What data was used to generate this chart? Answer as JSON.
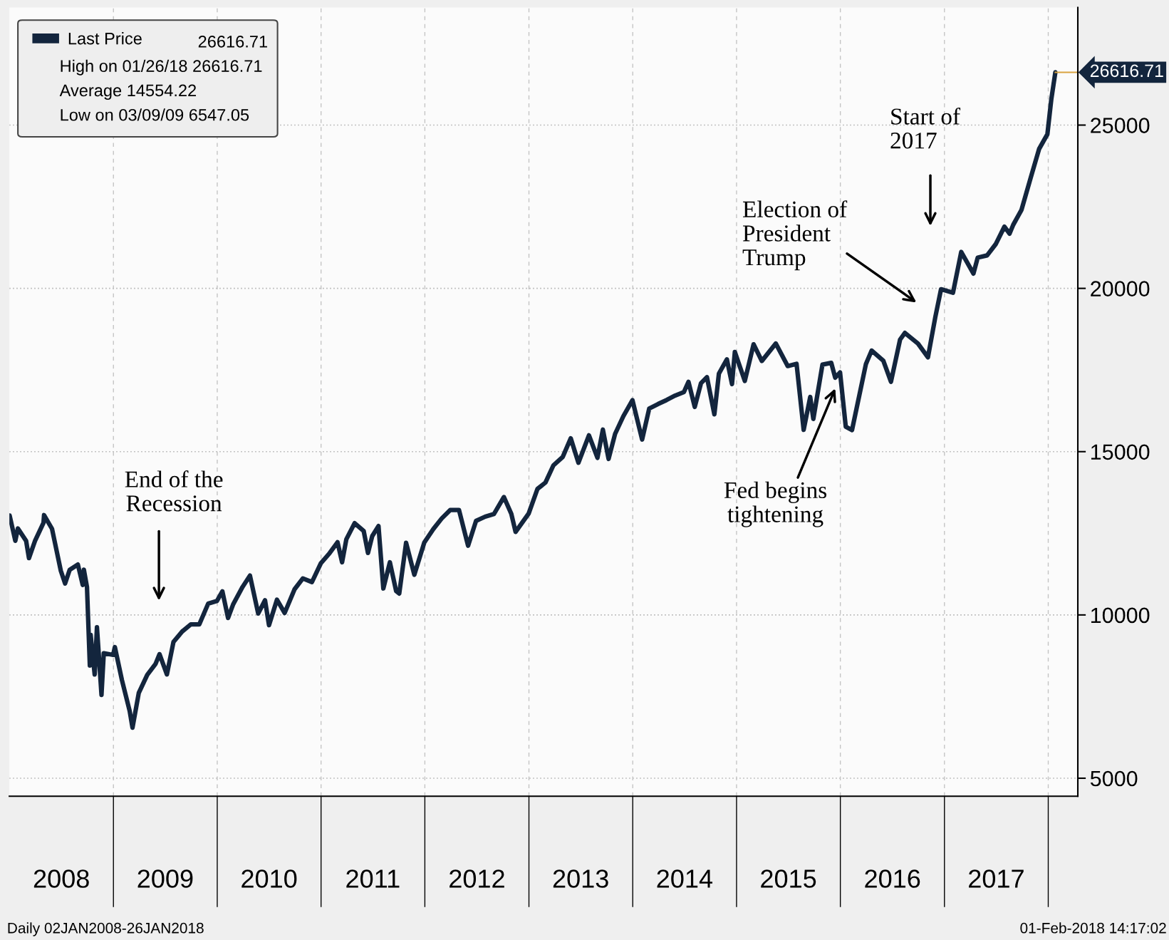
{
  "chart_data": {
    "type": "line",
    "series": [
      {
        "name": "Last Price",
        "color": "#13253d",
        "x": [
          "2008-01-02",
          "2008-01-22",
          "2008-01-31",
          "2008-02-29",
          "2008-03-10",
          "2008-03-31",
          "2008-04-30",
          "2008-05-02",
          "2008-05-30",
          "2008-06-30",
          "2008-07-15",
          "2008-07-31",
          "2008-08-29",
          "2008-09-15",
          "2008-09-19",
          "2008-09-30",
          "2008-10-10",
          "2008-10-13",
          "2008-10-27",
          "2008-11-04",
          "2008-11-20",
          "2008-11-28",
          "2008-12-31",
          "2009-01-06",
          "2009-01-31",
          "2009-02-27",
          "2009-03-09",
          "2009-03-31",
          "2009-04-30",
          "2009-05-29",
          "2009-06-12",
          "2009-07-08",
          "2009-07-31",
          "2009-08-31",
          "2009-09-30",
          "2009-10-30",
          "2009-11-30",
          "2009-12-31",
          "2010-01-19",
          "2010-02-08",
          "2010-02-26",
          "2010-03-31",
          "2010-04-26",
          "2010-05-25",
          "2010-06-18",
          "2010-07-02",
          "2010-07-30",
          "2010-08-26",
          "2010-09-30",
          "2010-10-29",
          "2010-11-30",
          "2010-12-31",
          "2011-01-31",
          "2011-02-28",
          "2011-03-16",
          "2011-03-31",
          "2011-04-29",
          "2011-05-31",
          "2011-06-15",
          "2011-06-30",
          "2011-07-22",
          "2011-08-08",
          "2011-08-31",
          "2011-09-22",
          "2011-10-03",
          "2011-10-27",
          "2011-11-25",
          "2011-12-30",
          "2012-01-31",
          "2012-02-29",
          "2012-03-30",
          "2012-04-30",
          "2012-06-01",
          "2012-06-29",
          "2012-07-31",
          "2012-08-31",
          "2012-10-05",
          "2012-10-31",
          "2012-11-15",
          "2012-12-31",
          "2013-01-31",
          "2013-02-28",
          "2013-03-28",
          "2013-04-30",
          "2013-05-28",
          "2013-06-24",
          "2013-07-31",
          "2013-08-30",
          "2013-09-18",
          "2013-10-08",
          "2013-10-31",
          "2013-11-29",
          "2013-12-31",
          "2014-02-03",
          "2014-02-28",
          "2014-03-31",
          "2014-04-30",
          "2014-05-30",
          "2014-06-30",
          "2014-07-16",
          "2014-08-07",
          "2014-08-29",
          "2014-09-19",
          "2014-10-15",
          "2014-10-31",
          "2014-11-28",
          "2014-12-16",
          "2014-12-26",
          "2015-01-30",
          "2015-03-02",
          "2015-03-31",
          "2015-05-19",
          "2015-06-30",
          "2015-07-31",
          "2015-08-25",
          "2015-09-17",
          "2015-09-28",
          "2015-10-30",
          "2015-11-30",
          "2015-12-14",
          "2015-12-31",
          "2016-01-20",
          "2016-02-11",
          "2016-03-31",
          "2016-04-20",
          "2016-05-31",
          "2016-06-27",
          "2016-07-29",
          "2016-08-15",
          "2016-09-30",
          "2016-11-04",
          "2016-11-30",
          "2016-12-20",
          "2017-01-31",
          "2017-03-01",
          "2017-04-13",
          "2017-04-28",
          "2017-05-31",
          "2017-06-30",
          "2017-07-31",
          "2017-08-18",
          "2017-08-31",
          "2017-09-29",
          "2017-10-31",
          "2017-11-30",
          "2017-12-29",
          "2018-01-12",
          "2018-01-26"
        ],
        "values": [
          13044,
          12270,
          12650,
          12266,
          11740,
          12263,
          12820,
          13058,
          12638,
          11350,
          10962,
          11378,
          11544,
          10917,
          11388,
          10851,
          8451,
          9387,
          8176,
          9625,
          7552,
          8829,
          8776,
          9015,
          8001,
          7063,
          6547,
          7609,
          8168,
          8500,
          8799,
          8179,
          9172,
          9496,
          9712,
          9713,
          10344,
          10428,
          10725,
          9908,
          10325,
          10857,
          11205,
          10043,
          10450,
          9686,
          10466,
          10060,
          10788,
          11118,
          11006,
          11578,
          11892,
          12226,
          11613,
          12320,
          12811,
          12570,
          11897,
          12414,
          12724,
          10810,
          11614,
          10734,
          10655,
          12209,
          11231,
          12218,
          12633,
          12952,
          13212,
          13214,
          12119,
          12880,
          13009,
          13091,
          13610,
          13096,
          12543,
          13104,
          13861,
          14054,
          14579,
          14840,
          15409,
          14660,
          15500,
          14810,
          15676,
          14776,
          15546,
          16086,
          16577,
          15372,
          16322,
          16458,
          16581,
          16717,
          16827,
          17138,
          16368,
          17098,
          17280,
          16142,
          17391,
          17828,
          17068,
          18053,
          17165,
          18288,
          17776,
          18312,
          17620,
          17690,
          15666,
          16675,
          16001,
          17664,
          17720,
          17265,
          17425,
          15766,
          15660,
          17685,
          18096,
          17787,
          17140,
          18432,
          18636,
          18308,
          17888,
          19124,
          19974,
          19864,
          21115,
          20453,
          20941,
          21009,
          21350,
          21891,
          21674,
          21948,
          22405,
          23377,
          24272,
          24719,
          25803,
          26616.71
        ]
      }
    ],
    "xlim": [
      "2008-01-01",
      "2018-04-15"
    ],
    "xticks": [
      {
        "value": "2008-07-02",
        "label": "2008"
      },
      {
        "value": "2009-07-02",
        "label": "2009"
      },
      {
        "value": "2010-07-02",
        "label": "2010"
      },
      {
        "value": "2011-07-02",
        "label": "2011"
      },
      {
        "value": "2012-07-02",
        "label": "2012"
      },
      {
        "value": "2013-07-02",
        "label": "2013"
      },
      {
        "value": "2014-07-02",
        "label": "2014"
      },
      {
        "value": "2015-07-02",
        "label": "2015"
      },
      {
        "value": "2016-07-02",
        "label": "2016"
      },
      {
        "value": "2017-07-02",
        "label": "2017"
      },
      {
        "value": "2009-01-01",
        "label": null
      },
      {
        "value": "2010-01-01",
        "label": null
      },
      {
        "value": "2011-01-01",
        "label": null
      },
      {
        "value": "2012-01-01",
        "label": null
      },
      {
        "value": "2013-01-01",
        "label": null
      },
      {
        "value": "2014-01-01",
        "label": null
      },
      {
        "value": "2015-01-01",
        "label": null
      },
      {
        "value": "2016-01-01",
        "label": null
      },
      {
        "value": "2017-01-01",
        "label": null
      },
      {
        "value": "2018-01-01",
        "label": null
      }
    ],
    "ylim": [
      4450,
      28600
    ],
    "yticks": [
      5000,
      10000,
      15000,
      20000,
      25000
    ],
    "grid": true,
    "legend": "top left",
    "annotations": [
      "26616.71",
      "High on 01/26/18 26616.71",
      "Average 14554.22",
      "Low on 03/09/09 6547.05",
      "End of the\nRecession",
      "Fed begins\ntightening",
      "Election of\nPresident\nTrump",
      "Start of\n2017",
      {
        "text": "26616.71",
        "x": "2018-01-26",
        "y": 26616.71
      },
      "Daily 02JAN2008-26JAN2018",
      "01-Feb-2018 14:17:02"
    ]
  }
}
